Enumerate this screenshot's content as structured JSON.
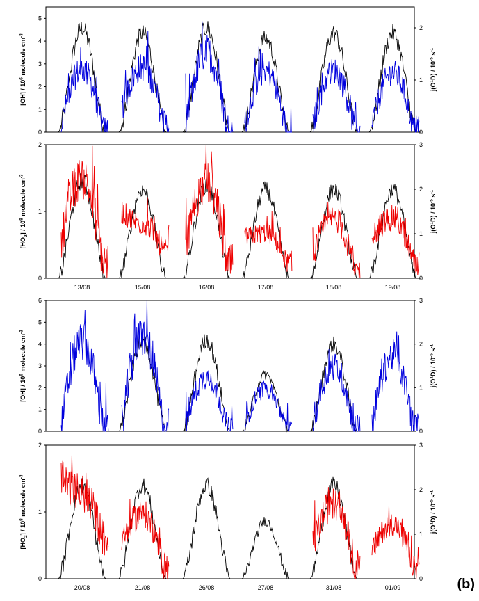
{
  "panel_letter": "(b)",
  "colors": {
    "ohc": "#0000dd",
    "ho2": "#ee0000",
    "j": "#000000"
  },
  "chart_data": [
    {
      "type": "line",
      "ylabel_left": "[OH] / 10^6 molecule cm^-3",
      "ylabel_right": "j(O1D) / 10^-5 s^-1",
      "yticks_left": [
        "0",
        "1",
        "2",
        "3",
        "4",
        "5"
      ],
      "yticks_right": [
        "0",
        "1",
        "2"
      ],
      "ylim_left": [
        0,
        5.5
      ],
      "ylim_right": [
        0,
        2.4
      ],
      "days": 6,
      "series": [
        {
          "kind": "measured",
          "color": "#0000dd",
          "peaks": [
            3.7,
            3.8,
            4.7,
            3.6,
            3.6,
            3.5
          ],
          "starts": [
            0.3,
            1.0,
            0.3,
            0.3,
            0.3,
            0.3
          ]
        },
        {
          "kind": "j",
          "color": "#000000",
          "peaks": [
            2.0,
            1.9,
            2.0,
            1.8,
            1.9,
            1.9
          ]
        }
      ]
    },
    {
      "type": "line",
      "ylabel_left": "[HO2] / 10^8 molecule cm^-3",
      "ylabel_right": "j(O1D) / 10^-5 s^-1",
      "yticks_left": [
        "0",
        "1",
        "2"
      ],
      "yticks_right": [
        "0",
        "1",
        "2",
        "3"
      ],
      "ylim_left": [
        0,
        2
      ],
      "ylim_right": [
        0,
        3
      ],
      "days": 6,
      "categories": [
        "13/08",
        "15/08",
        "16/08",
        "17/08",
        "18/08",
        "19/08"
      ],
      "series": [
        {
          "kind": "measured",
          "color": "#ee0000",
          "peaks": [
            2.0,
            1.1,
            1.9,
            0.9,
            1.2,
            1.2
          ],
          "starts": [
            0.6,
            1.0,
            0.5,
            0.6,
            0.3,
            0.6
          ]
        },
        {
          "kind": "j",
          "color": "#000000",
          "peaks": [
            2.2,
            2.0,
            2.1,
            2.0,
            2.0,
            2.0
          ]
        }
      ]
    },
    {
      "type": "line",
      "ylabel_left": "[OH] / 10^6 molecule cm^-3",
      "ylabel_right": "j(O1D) / 10^-5 s^-1",
      "yticks_left": [
        "0",
        "1",
        "2",
        "3",
        "4",
        "5",
        "6"
      ],
      "yticks_right": [
        "0",
        "1",
        "2",
        "3"
      ],
      "ylim_left": [
        0,
        6
      ],
      "ylim_right": [
        0,
        3
      ],
      "days": 6,
      "series": [
        {
          "kind": "measured",
          "color": "#0000dd",
          "peaks": [
            5.5,
            5.8,
            3.3,
            2.6,
            4.0,
            4.6
          ],
          "starts": [
            0.3,
            0.3,
            0.3,
            0.3,
            0.3,
            0.3
          ]
        },
        {
          "kind": "j",
          "color": "#000000",
          "peaks": [
            0.0,
            2.1,
            2.1,
            1.3,
            2.0,
            0.0
          ]
        }
      ]
    },
    {
      "type": "line",
      "ylabel_left": "[HO2] / 10^8 molecule cm^-3",
      "ylabel_right": "j(O1D) / 10^-5 s^-1",
      "yticks_left": [
        "0",
        "1",
        "2"
      ],
      "yticks_right": [
        "0",
        "1",
        "2",
        "3"
      ],
      "ylim_left": [
        0,
        2
      ],
      "ylim_right": [
        0,
        3
      ],
      "days": 6,
      "categories": [
        "20/08",
        "21/08",
        "26/08",
        "27/08",
        "31/08",
        "01/09"
      ],
      "series": [
        {
          "kind": "measured",
          "color": "#ee0000",
          "peaks": [
            1.7,
            1.3,
            0.0,
            0.0,
            1.5,
            1.1
          ],
          "starts": [
            1.5,
            0.5,
            0.0,
            0.0,
            0.5,
            0.4
          ]
        },
        {
          "kind": "j",
          "color": "#000000",
          "peaks": [
            2.1,
            2.1,
            2.1,
            1.3,
            2.1,
            0.0
          ]
        }
      ]
    }
  ]
}
